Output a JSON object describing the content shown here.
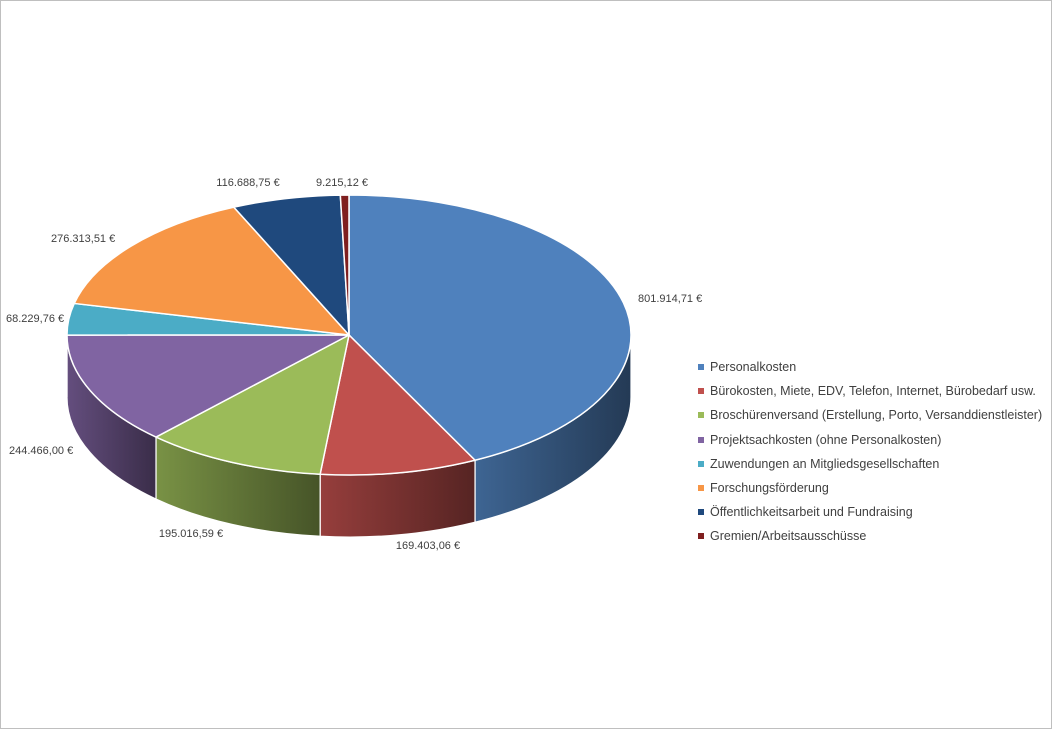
{
  "chart_data": {
    "type": "pie",
    "title": "",
    "three_d": true,
    "legend_position": "right",
    "series": [
      {
        "name": "Personalkosten",
        "value": 801914.71,
        "label": "801.914,71 €",
        "color": "#4F81BD"
      },
      {
        "name": "Bürokosten, Miete, EDV, Telefon, Internet, Bürobedarf usw.",
        "value": 169403.06,
        "label": "169.403,06 €",
        "color": "#C0504D"
      },
      {
        "name": "Broschürenversand (Erstellung, Porto, Versanddienstleister)",
        "value": 195016.59,
        "label": "195.016,59 €",
        "color": "#9BBB59"
      },
      {
        "name": "Projektsachkosten (ohne Personalkosten)",
        "value": 244466.0,
        "label": "244.466,00 €",
        "color": "#8064A2"
      },
      {
        "name": "Zuwendungen an Mitgliedsgesellschaften",
        "value": 68229.76,
        "label": "68.229,76 €",
        "color": "#4BACC6"
      },
      {
        "name": "Forschungsförderung",
        "value": 276313.51,
        "label": "276.313,51 €",
        "color": "#F79646"
      },
      {
        "name": "Öffentlichkeitsarbeit und Fundraising",
        "value": 116688.75,
        "label": "116.688,75 €",
        "color": "#1F497D"
      },
      {
        "name": "Gremien/Arbeitsausschüsse",
        "value": 9215.12,
        "label": "9.215,12 €",
        "color": "#7F1F1F"
      }
    ]
  }
}
